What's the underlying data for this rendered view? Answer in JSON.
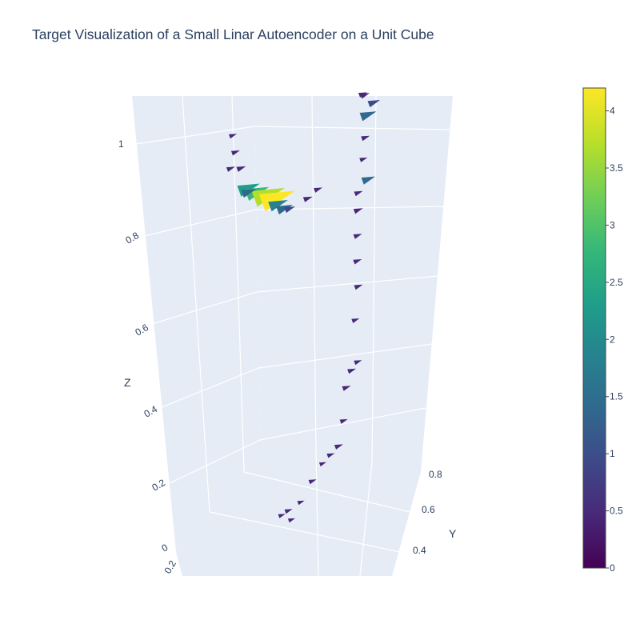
{
  "title": "Target Visualization of a Small Linar Autoencoder on a Unit Cube",
  "chart_data": {
    "type": "cone",
    "title": "Target Visualization of a Small Linar Autoencoder on a Unit Cube",
    "axes": {
      "x": {
        "label": "",
        "ticks": [
          "0.2"
        ]
      },
      "y": {
        "label": "Y",
        "ticks": [
          "0.4",
          "0.6",
          "0.8"
        ]
      },
      "z": {
        "label": "Z",
        "ticks": [
          "0",
          "0.2",
          "0.4",
          "0.6",
          "0.8",
          "1"
        ]
      }
    },
    "colorbar": {
      "colorscale": "Viridis",
      "cmin": 0,
      "cmax": 4.2,
      "ticks": [
        "0",
        "0.5",
        "1",
        "1.5",
        "2",
        "2.5",
        "3",
        "3.5",
        "4"
      ],
      "tick_values": [
        0,
        0.5,
        1,
        1.5,
        2,
        2.5,
        3,
        3.5,
        4
      ]
    },
    "colors": {
      "background": "#e5ecf6",
      "grid": "#ffffff",
      "text": "#2a3f5f",
      "viridis": [
        "#440154",
        "#482878",
        "#3e4989",
        "#31688e",
        "#26828e",
        "#1f9e89",
        "#35b779",
        "#6ece58",
        "#b5de2b",
        "#fde725"
      ]
    },
    "cones": [
      {
        "x": 0.45,
        "y": 0.45,
        "z": 0.06,
        "magnitude": 0.3
      },
      {
        "x": 0.48,
        "y": 0.47,
        "z": 0.07,
        "magnitude": 0.4
      },
      {
        "x": 0.52,
        "y": 0.46,
        "z": 0.05,
        "magnitude": 0.3
      },
      {
        "x": 0.55,
        "y": 0.5,
        "z": 0.09,
        "magnitude": 0.3
      },
      {
        "x": 0.62,
        "y": 0.52,
        "z": 0.14,
        "magnitude": 0.4
      },
      {
        "x": 0.66,
        "y": 0.56,
        "z": 0.18,
        "magnitude": 0.3
      },
      {
        "x": 0.7,
        "y": 0.58,
        "z": 0.2,
        "magnitude": 0.4
      },
      {
        "x": 0.74,
        "y": 0.6,
        "z": 0.22,
        "magnitude": 0.5
      },
      {
        "x": 0.76,
        "y": 0.62,
        "z": 0.28,
        "magnitude": 0.4
      },
      {
        "x": 0.78,
        "y": 0.62,
        "z": 0.36,
        "magnitude": 0.5
      },
      {
        "x": 0.8,
        "y": 0.64,
        "z": 0.4,
        "magnitude": 0.5
      },
      {
        "x": 0.83,
        "y": 0.66,
        "z": 0.42,
        "magnitude": 0.4
      },
      {
        "x": 0.81,
        "y": 0.66,
        "z": 0.52,
        "magnitude": 0.4
      },
      {
        "x": 0.82,
        "y": 0.67,
        "z": 0.6,
        "magnitude": 0.5
      },
      {
        "x": 0.8,
        "y": 0.68,
        "z": 0.66,
        "magnitude": 0.5
      },
      {
        "x": 0.79,
        "y": 0.69,
        "z": 0.72,
        "magnitude": 0.5
      },
      {
        "x": 0.78,
        "y": 0.7,
        "z": 0.78,
        "magnitude": 0.6
      },
      {
        "x": 0.76,
        "y": 0.72,
        "z": 0.82,
        "magnitude": 0.5
      },
      {
        "x": 0.8,
        "y": 0.74,
        "z": 0.85,
        "magnitude": 1.2
      },
      {
        "x": 0.78,
        "y": 0.74,
        "z": 0.9,
        "magnitude": 0.4
      },
      {
        "x": 0.77,
        "y": 0.76,
        "z": 0.95,
        "magnitude": 0.5
      },
      {
        "x": 0.74,
        "y": 0.78,
        "z": 1.0,
        "magnitude": 1.6
      },
      {
        "x": 0.78,
        "y": 0.8,
        "z": 1.03,
        "magnitude": 1.0
      },
      {
        "x": 0.7,
        "y": 0.8,
        "z": 1.05,
        "magnitude": 0.5
      },
      {
        "x": 0.74,
        "y": 0.78,
        "z": 1.05,
        "magnitude": 0.6
      },
      {
        "x": 0.3,
        "y": 0.3,
        "z": 0.85,
        "magnitude": 2.4
      },
      {
        "x": 0.34,
        "y": 0.32,
        "z": 0.84,
        "magnitude": 2.6
      },
      {
        "x": 0.38,
        "y": 0.34,
        "z": 0.83,
        "magnitude": 3.8
      },
      {
        "x": 0.42,
        "y": 0.36,
        "z": 0.82,
        "magnitude": 4.2
      },
      {
        "x": 0.46,
        "y": 0.38,
        "z": 0.81,
        "magnitude": 2.0
      },
      {
        "x": 0.5,
        "y": 0.4,
        "z": 0.8,
        "magnitude": 1.6
      },
      {
        "x": 0.54,
        "y": 0.42,
        "z": 0.8,
        "magnitude": 0.8
      },
      {
        "x": 0.22,
        "y": 0.3,
        "z": 0.98,
        "magnitude": 0.4
      },
      {
        "x": 0.24,
        "y": 0.3,
        "z": 0.94,
        "magnitude": 0.5
      },
      {
        "x": 0.26,
        "y": 0.32,
        "z": 0.9,
        "magnitude": 0.6
      },
      {
        "x": 0.2,
        "y": 0.3,
        "z": 0.9,
        "magnitude": 0.5
      },
      {
        "x": 0.28,
        "y": 0.34,
        "z": 0.84,
        "magnitude": 1.4
      },
      {
        "x": 0.6,
        "y": 0.5,
        "z": 0.82,
        "magnitude": 0.6
      },
      {
        "x": 0.64,
        "y": 0.54,
        "z": 0.84,
        "magnitude": 0.5
      }
    ]
  }
}
